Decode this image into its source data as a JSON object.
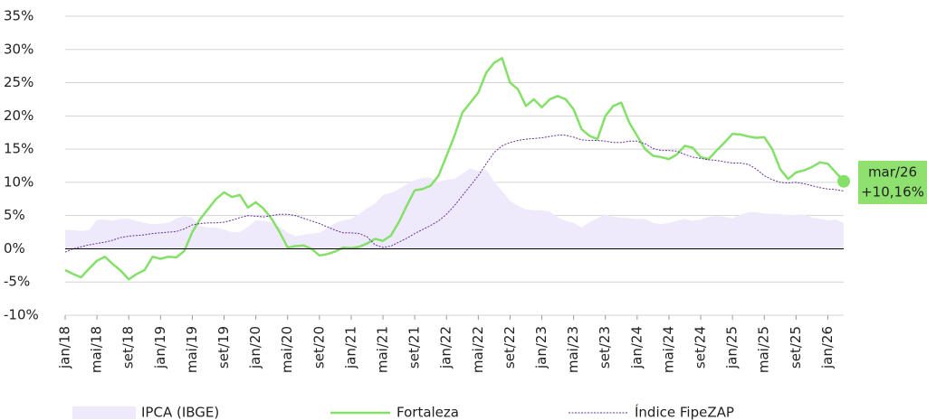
{
  "chart_data": {
    "type": "line",
    "categories": [
      "jan/18",
      null,
      null,
      null,
      "mai/18",
      null,
      null,
      null,
      "set/18",
      null,
      null,
      null,
      "jan/19",
      null,
      null,
      null,
      "mai/19",
      null,
      null,
      null,
      "set/19",
      null,
      null,
      null,
      "jan/20",
      null,
      null,
      null,
      "mai/20",
      null,
      null,
      null,
      "set/20",
      null,
      null,
      null,
      "jan/21",
      null,
      null,
      null,
      "mai/21",
      null,
      null,
      null,
      "set/21",
      null,
      null,
      null,
      "jan/22",
      null,
      null,
      null,
      "mai/22",
      null,
      null,
      null,
      "set/22",
      null,
      null,
      null,
      "jan/23",
      null,
      null,
      null,
      "mai/23",
      null,
      null,
      null,
      "set/23",
      null,
      null,
      null,
      "jan/24",
      null,
      null,
      null,
      "mai/24",
      null,
      null,
      null,
      "set/24",
      null,
      null,
      null,
      "jan/25",
      null,
      null,
      null,
      "mai/25",
      null,
      null,
      null,
      "set/25",
      null,
      null,
      null,
      "jan/26",
      null,
      null
    ],
    "series": [
      {
        "name": "IPCA (IBGE)",
        "style": "area",
        "color": "#eeeafb",
        "values": [
          2.9,
          2.8,
          2.7,
          2.8,
          4.4,
          4.4,
          4.2,
          4.5,
          4.5,
          4.2,
          3.9,
          3.7,
          3.8,
          3.9,
          4.6,
          4.9,
          4.7,
          3.4,
          3.2,
          3.2,
          2.9,
          2.5,
          2.5,
          3.3,
          4.3,
          4.2,
          4.0,
          3.3,
          2.4,
          1.9,
          2.1,
          2.3,
          2.4,
          3.1,
          3.9,
          4.3,
          4.5,
          5.2,
          6.1,
          6.8,
          8.1,
          8.4,
          9.0,
          9.7,
          10.3,
          10.7,
          10.7,
          10.1,
          10.4,
          10.5,
          11.3,
          12.1,
          11.7,
          11.9,
          10.1,
          8.7,
          7.2,
          6.5,
          5.9,
          5.8,
          5.8,
          5.6,
          4.7,
          4.2,
          3.9,
          3.2,
          4.0,
          4.6,
          5.2,
          4.8,
          4.7,
          4.6,
          4.5,
          4.5,
          3.9,
          3.7,
          3.9,
          4.2,
          4.5,
          4.2,
          4.4,
          4.8,
          4.9,
          4.8,
          4.6,
          5.1,
          5.5,
          5.5,
          5.3,
          5.3,
          5.2,
          5.1,
          5.1,
          5.2,
          4.7,
          4.5,
          4.3,
          4.4,
          3.9
        ]
      },
      {
        "name": "Fortaleza",
        "style": "line",
        "color": "#84e068",
        "values": [
          -3.2,
          -3.8,
          -4.3,
          -3.0,
          -1.8,
          -1.2,
          -2.3,
          -3.3,
          -4.6,
          -3.8,
          -3.2,
          -1.2,
          -1.5,
          -1.2,
          -1.3,
          -0.3,
          2.5,
          4.5,
          6.0,
          7.5,
          8.5,
          7.8,
          8.1,
          6.2,
          7.0,
          6.0,
          4.5,
          2.5,
          0.2,
          0.4,
          0.5,
          0.0,
          -1.0,
          -0.8,
          -0.4,
          0.2,
          0.1,
          0.3,
          0.8,
          1.5,
          1.2,
          2.0,
          4.0,
          6.5,
          8.8,
          9.0,
          9.5,
          11.0,
          14.0,
          17.0,
          20.5,
          22.0,
          23.5,
          26.5,
          28.0,
          28.7,
          25.0,
          24.0,
          21.5,
          22.5,
          21.3,
          22.5,
          23.0,
          22.5,
          21.0,
          18.0,
          17.0,
          16.5,
          20.0,
          21.5,
          22.0,
          19.0,
          17.0,
          15.0,
          14.0,
          13.8,
          13.5,
          14.2,
          15.5,
          15.2,
          13.8,
          13.5,
          14.8,
          16.0,
          17.3,
          17.2,
          16.9,
          16.7,
          16.8,
          15.0,
          12.0,
          10.5,
          11.5,
          11.8,
          12.3,
          13.0,
          12.8,
          11.5,
          10.16
        ]
      },
      {
        "name": "Índice FipeZAP",
        "style": "dotted",
        "color": "#6b2fa0",
        "values": [
          -0.5,
          0,
          0.3,
          0.6,
          0.8,
          1.0,
          1.3,
          1.7,
          1.9,
          2.0,
          2.1,
          2.3,
          2.4,
          2.5,
          2.6,
          3.0,
          3.6,
          3.8,
          3.9,
          3.9,
          4.0,
          4.3,
          4.7,
          5.0,
          4.9,
          4.8,
          5.0,
          5.2,
          5.2,
          5.0,
          4.6,
          4.2,
          3.8,
          3.3,
          2.8,
          2.4,
          2.4,
          2.3,
          1.8,
          0.6,
          0.2,
          0.4,
          1.0,
          1.6,
          2.3,
          2.9,
          3.5,
          4.2,
          5.2,
          6.5,
          8.0,
          9.5,
          11.0,
          12.8,
          14.5,
          15.5,
          16.0,
          16.3,
          16.5,
          16.6,
          16.7,
          16.9,
          17.1,
          17.1,
          16.8,
          16.4,
          16.3,
          16.3,
          16.2,
          16.0,
          16.0,
          16.2,
          16.2,
          15.8,
          15.1,
          14.8,
          14.8,
          14.7,
          14.2,
          13.8,
          13.6,
          13.4,
          13.3,
          13.1,
          12.9,
          12.9,
          12.7,
          12.0,
          11.0,
          10.4,
          10.0,
          9.9,
          10.0,
          9.8,
          9.5,
          9.2,
          9.0,
          8.9,
          8.7
        ]
      }
    ],
    "ylim": [
      -10,
      35
    ],
    "yticks": [
      {
        "value": -10,
        "label": "-10%"
      },
      {
        "value": -5,
        "label": "-5%"
      },
      {
        "value": 0,
        "label": "0%"
      },
      {
        "value": 5,
        "label": "5%"
      },
      {
        "value": 10,
        "label": "10%"
      },
      {
        "value": 15,
        "label": "15%"
      },
      {
        "value": 20,
        "label": "20%"
      },
      {
        "value": 25,
        "label": "25%"
      },
      {
        "value": 30,
        "label": "30%"
      },
      {
        "value": 35,
        "label": "35%"
      }
    ],
    "grid": true,
    "legend": "bottom",
    "annotations": [
      "mar/26",
      "+10,16%"
    ]
  }
}
